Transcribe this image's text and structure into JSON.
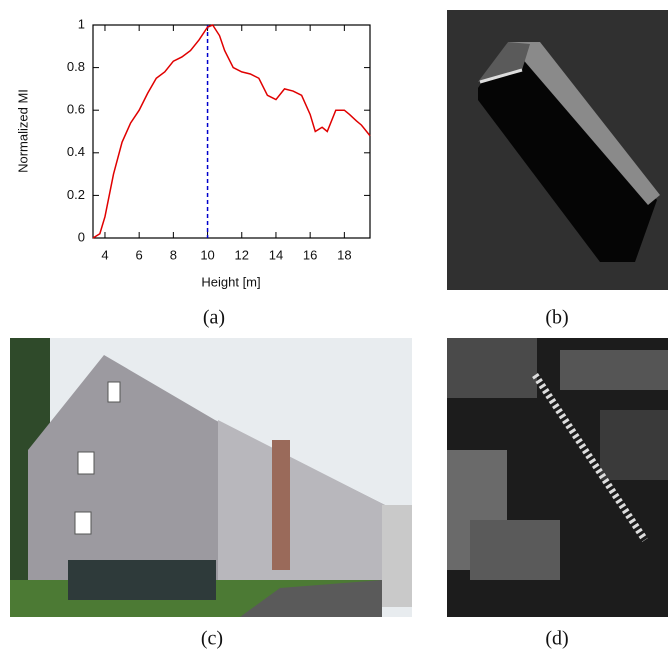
{
  "chart_data": {
    "type": "line",
    "x_label": "Height [m]",
    "y_label": "Normalized MI",
    "x": [
      3.3,
      3.7,
      4,
      4.5,
      5,
      5.5,
      6,
      6.5,
      7,
      7.5,
      8,
      8.5,
      9,
      9.5,
      10,
      10.3,
      10.7,
      11,
      11.5,
      12,
      12.5,
      13,
      13.5,
      14,
      14.5,
      15,
      15.5,
      16,
      16.3,
      16.7,
      17,
      17.5,
      18,
      18.3,
      18.7,
      19,
      19.5
    ],
    "values": [
      0.0,
      0.02,
      0.1,
      0.3,
      0.45,
      0.54,
      0.6,
      0.68,
      0.75,
      0.78,
      0.83,
      0.85,
      0.88,
      0.93,
      0.99,
      1.0,
      0.95,
      0.88,
      0.8,
      0.78,
      0.77,
      0.75,
      0.67,
      0.65,
      0.7,
      0.69,
      0.67,
      0.58,
      0.5,
      0.52,
      0.5,
      0.6,
      0.6,
      0.58,
      0.55,
      0.53,
      0.48
    ],
    "color": "#e00000",
    "vline": {
      "x": 10,
      "color": "#0000cc"
    },
    "xlim": [
      3.3,
      19.5
    ],
    "ylim": [
      0,
      1
    ],
    "xticks": [
      4,
      6,
      8,
      10,
      12,
      14,
      16,
      18
    ],
    "yticks": [
      0,
      0.2,
      0.4,
      0.6,
      0.8,
      1
    ]
  },
  "captions": [
    "(a)",
    "(b)",
    "(c)",
    "(d)"
  ]
}
